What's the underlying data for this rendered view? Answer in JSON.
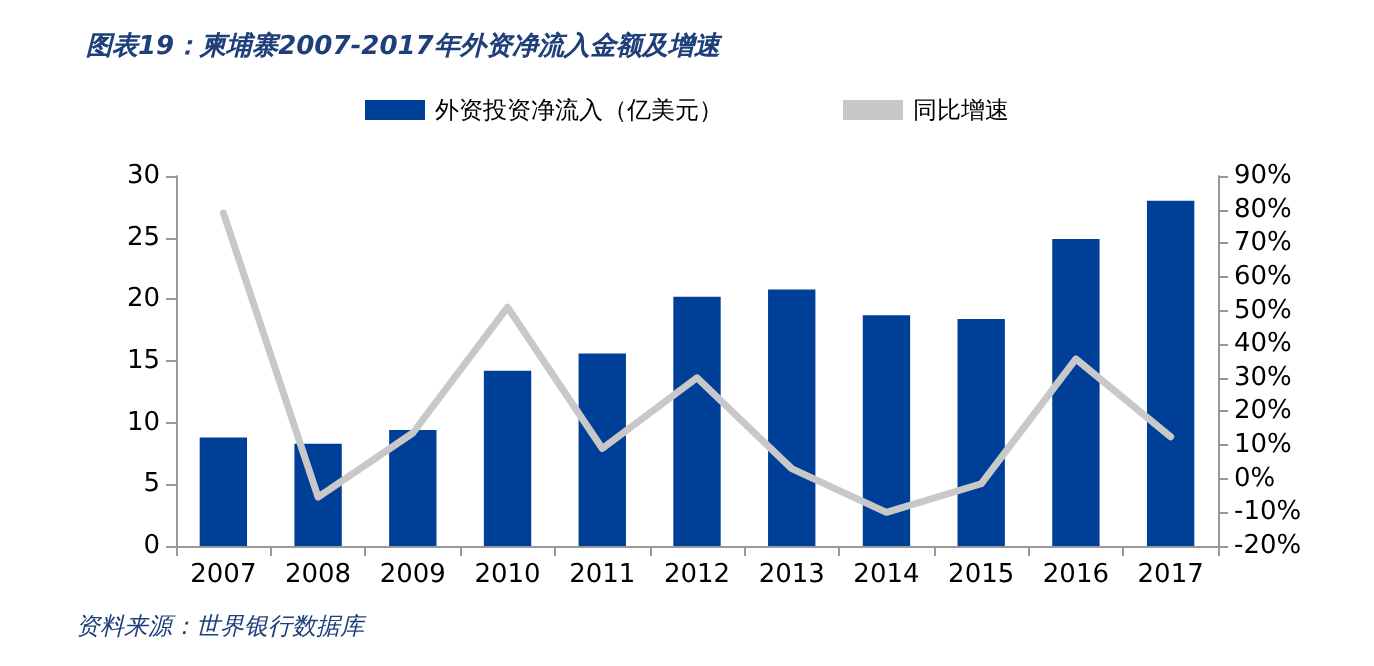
{
  "chart_data": {
    "type": "bar",
    "title": "图表19：柬埔寨2007-2017年外资净流入金额及增速",
    "annotations": [
      "资料来源：世界银行数据库"
    ],
    "categories": [
      "2007",
      "2008",
      "2009",
      "2010",
      "2011",
      "2012",
      "2013",
      "2014",
      "2015",
      "2016",
      "2017"
    ],
    "series": [
      {
        "name": "外资投资净流入（亿美元）",
        "color": "#003f98",
        "values": [
          8.8,
          8.3,
          9.4,
          14.2,
          15.6,
          20.2,
          20.8,
          18.7,
          18.4,
          24.9,
          28.0
        ]
      },
      {
        "name": "同比增速",
        "type": "line",
        "axis": "y2",
        "color": "#c8c8c8",
        "values": [
          79,
          -5.5,
          13.6,
          51,
          9,
          30,
          3,
          -10,
          -1.5,
          35.6,
          12.5
        ]
      }
    ],
    "ylim": [
      0,
      30
    ],
    "yticks": [
      0,
      5,
      10,
      15,
      20,
      25,
      30
    ],
    "y2lim": [
      -20,
      90
    ],
    "y2ticks": [
      {
        "value": -20,
        "label": "-20%"
      },
      {
        "value": -10,
        "label": "-10%"
      },
      {
        "value": 0,
        "label": "0%"
      },
      {
        "value": 10,
        "label": "10%"
      },
      {
        "value": 20,
        "label": "20%"
      },
      {
        "value": 30,
        "label": "30%"
      },
      {
        "value": 40,
        "label": "40%"
      },
      {
        "value": 50,
        "label": "50%"
      },
      {
        "value": 60,
        "label": "60%"
      },
      {
        "value": 70,
        "label": "70%"
      },
      {
        "value": 80,
        "label": "80%"
      },
      {
        "value": 90,
        "label": "90%"
      }
    ],
    "legend": "top",
    "grid": false,
    "marker": "none",
    "line_style": "solid"
  }
}
